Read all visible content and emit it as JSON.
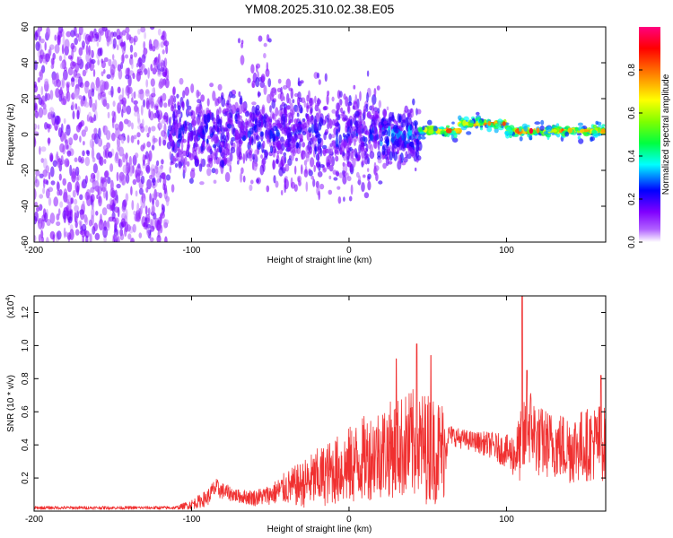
{
  "title": "YM08.2025.310.02.38.E05",
  "chart_data": [
    {
      "type": "heatmap",
      "name": "spectrogram",
      "xlabel": "Height of straight line (km)",
      "ylabel": "Frequency (Hz)",
      "xlim": [
        -200,
        163
      ],
      "ylim": [
        -60,
        60
      ],
      "xticks": [
        -200,
        -100,
        0,
        100
      ],
      "xtick_labels": [
        "-200",
        "-100",
        "0",
        "100"
      ],
      "yticks": [
        -60,
        -40,
        -20,
        0,
        20,
        40,
        60
      ],
      "ytick_labels": [
        "-60",
        "-40",
        "-20",
        "0",
        "20",
        "40",
        "60"
      ],
      "colorbar": {
        "label": "Normalized spectral amplitude",
        "range": [
          0,
          1
        ],
        "ticks": [
          0,
          0.2,
          0.4,
          0.6,
          0.8
        ],
        "tick_labels": [
          "0.0",
          "0.2",
          "0.4",
          "0.6",
          "0.8"
        ],
        "colors": [
          "#ffffff",
          "#8000ff",
          "#0000ff",
          "#00ffff",
          "#00ff00",
          "#ffff00",
          "#ff8000",
          "#ff0000",
          "#ff0080"
        ]
      },
      "regions": [
        {
          "x_range": [
            -200,
            -115
          ],
          "freq_center": 0,
          "freq_spread": 60,
          "amplitude": 0.15,
          "description_type": "noise"
        },
        {
          "x_range": [
            -115,
            45
          ],
          "freq_center": 0,
          "freq_spread": 25,
          "amplitude": 0.3
        },
        {
          "x_range": [
            45,
            163
          ],
          "freq_center": 3,
          "freq_spread": 3,
          "amplitude": 0.9
        }
      ]
    },
    {
      "type": "line",
      "name": "snr",
      "xlabel": "Height of straight line (km)",
      "ylabel": "SNR (10 * v/v)",
      "ylabel_scale": "(x10",
      "ylabel_scale_exp": "4",
      "ylabel_scale_close": ")",
      "xlim": [
        -200,
        163
      ],
      "ylim": [
        0,
        1.3
      ],
      "xticks": [
        -200,
        -100,
        0,
        100
      ],
      "xtick_labels": [
        "-200",
        "-100",
        "0",
        "100"
      ],
      "yticks": [
        0.2,
        0.4,
        0.6,
        0.8,
        1.0,
        1.2
      ],
      "ytick_labels": [
        "0.2",
        "0.4",
        "0.6",
        "0.8",
        "1.0",
        "1.2"
      ],
      "color": "#f03030",
      "envelope": {
        "x": [
          -200,
          -110,
          -100,
          -90,
          -85,
          -80,
          -70,
          -60,
          -50,
          -40,
          -30,
          -20,
          -10,
          0,
          10,
          20,
          30,
          40,
          50,
          60,
          63,
          65,
          70,
          80,
          90,
          100,
          105,
          110,
          115,
          120,
          130,
          140,
          150,
          160,
          163
        ],
        "mean": [
          0.02,
          0.02,
          0.04,
          0.08,
          0.14,
          0.12,
          0.09,
          0.08,
          0.1,
          0.14,
          0.16,
          0.2,
          0.24,
          0.27,
          0.32,
          0.36,
          0.38,
          0.4,
          0.38,
          0.36,
          0.46,
          0.46,
          0.44,
          0.42,
          0.4,
          0.36,
          0.34,
          0.4,
          0.52,
          0.42,
          0.4,
          0.38,
          0.4,
          0.42,
          0.4
        ],
        "amp": [
          0.01,
          0.01,
          0.03,
          0.05,
          0.06,
          0.05,
          0.04,
          0.05,
          0.06,
          0.1,
          0.14,
          0.18,
          0.2,
          0.24,
          0.26,
          0.28,
          0.3,
          0.34,
          0.34,
          0.32,
          0.06,
          0.06,
          0.06,
          0.06,
          0.08,
          0.1,
          0.14,
          0.24,
          0.24,
          0.22,
          0.2,
          0.22,
          0.22,
          0.24,
          0.22
        ]
      },
      "peaks": [
        {
          "x": 30,
          "y": 0.92
        },
        {
          "x": 43,
          "y": 1.01
        },
        {
          "x": 52,
          "y": 0.94
        },
        {
          "x": 110,
          "y": 1.3
        },
        {
          "x": 113,
          "y": 0.85
        },
        {
          "x": 160,
          "y": 0.82
        }
      ]
    }
  ]
}
